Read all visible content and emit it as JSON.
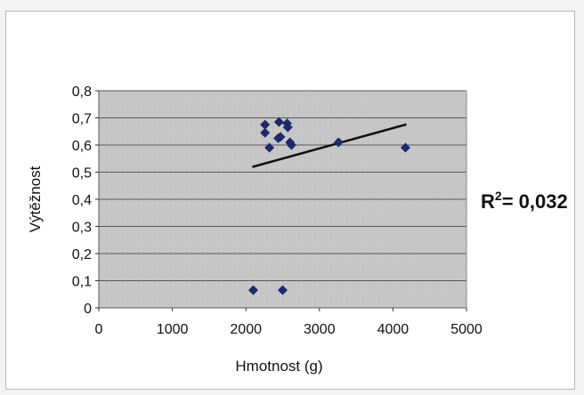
{
  "chart_data": {
    "type": "scatter",
    "xlabel": "Hmotnost (g)",
    "ylabel": "Výtěžnost",
    "xlim": [
      0,
      5000
    ],
    "ylim": [
      0,
      0.8
    ],
    "xticks": [
      0,
      1000,
      2000,
      3000,
      4000,
      5000
    ],
    "yticks": [
      0,
      0.1,
      0.2,
      0.3,
      0.4,
      0.5,
      0.6,
      0.7,
      0.8
    ],
    "xtick_labels": [
      "0",
      "1000",
      "2000",
      "3000",
      "4000",
      "5000"
    ],
    "ytick_labels": [
      "0",
      "0,1",
      "0,2",
      "0,3",
      "0,4",
      "0,5",
      "0,6",
      "0,7",
      "0,8"
    ],
    "grid": "horizontal",
    "legend": "none",
    "marker": "diamond",
    "points": [
      {
        "x": 2100,
        "y": 0.065
      },
      {
        "x": 2260,
        "y": 0.675
      },
      {
        "x": 2260,
        "y": 0.645
      },
      {
        "x": 2320,
        "y": 0.59
      },
      {
        "x": 2450,
        "y": 0.685
      },
      {
        "x": 2440,
        "y": 0.625
      },
      {
        "x": 2470,
        "y": 0.63
      },
      {
        "x": 2500,
        "y": 0.065
      },
      {
        "x": 2560,
        "y": 0.68
      },
      {
        "x": 2570,
        "y": 0.665
      },
      {
        "x": 2600,
        "y": 0.61
      },
      {
        "x": 2620,
        "y": 0.6
      },
      {
        "x": 3260,
        "y": 0.61
      },
      {
        "x": 4170,
        "y": 0.59
      }
    ],
    "trendline": {
      "type": "linear",
      "from": {
        "x": 2100,
        "y": 0.52
      },
      "to": {
        "x": 4170,
        "y": 0.675
      }
    },
    "annotation": {
      "prefix": "R",
      "superscript": "2",
      "text": "= 0,032"
    },
    "colors": {
      "marker": "#1c2a6b",
      "trendline": "#111111",
      "plot_background": "#c6c6c6",
      "gridline": "#5a5a5a"
    }
  }
}
